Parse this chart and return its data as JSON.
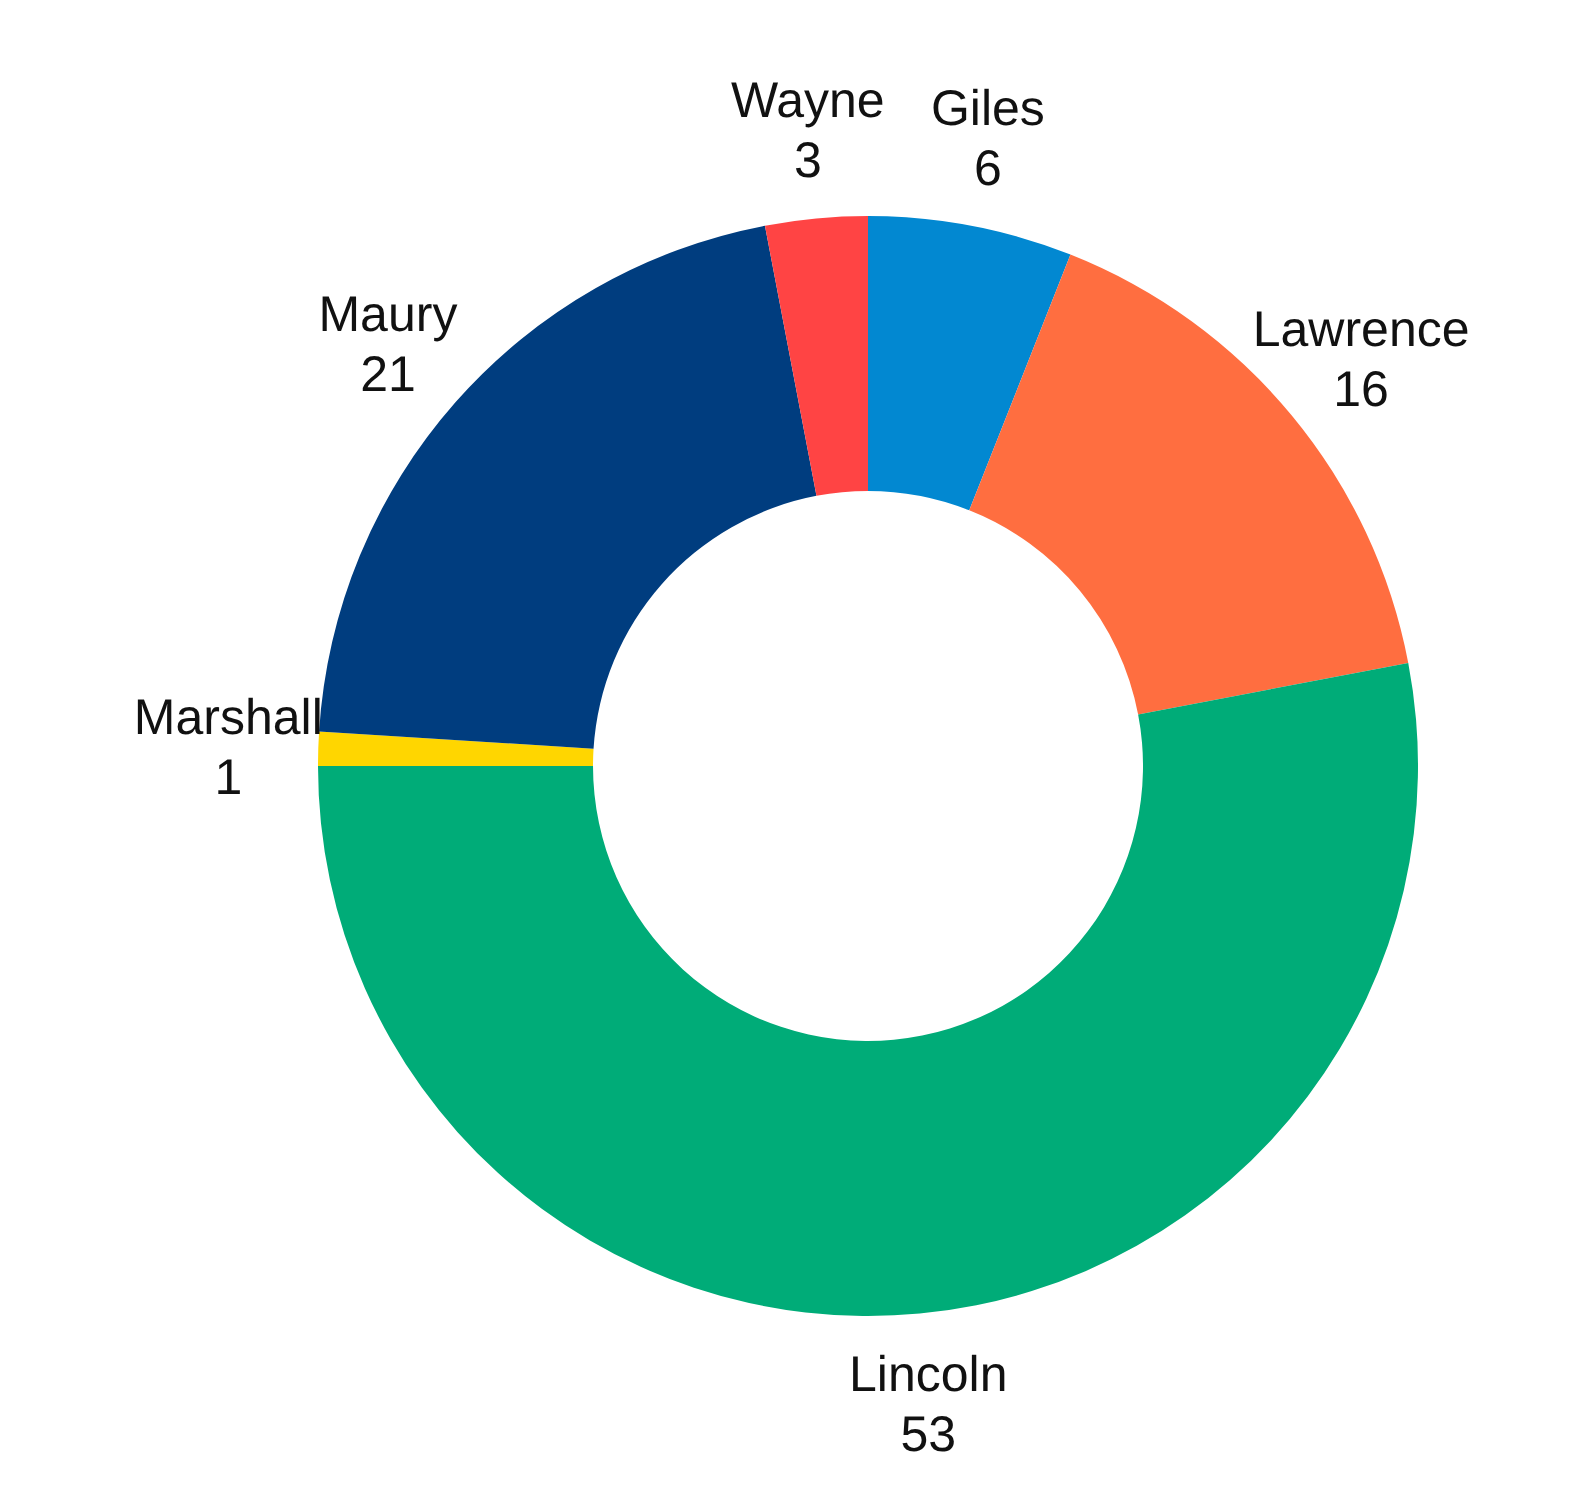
{
  "chart_data": {
    "type": "donut",
    "categories": [
      "Giles",
      "Lawrence",
      "Lincoln",
      "Marshall",
      "Maury",
      "Wayne"
    ],
    "values": [
      6,
      16,
      53,
      1,
      21,
      3
    ],
    "colors": [
      "#0288d1",
      "#ff6e40",
      "#00ac78",
      "#ffd600",
      "#003d7f",
      "#ff4444"
    ],
    "data_labels": true,
    "legend": false
  }
}
